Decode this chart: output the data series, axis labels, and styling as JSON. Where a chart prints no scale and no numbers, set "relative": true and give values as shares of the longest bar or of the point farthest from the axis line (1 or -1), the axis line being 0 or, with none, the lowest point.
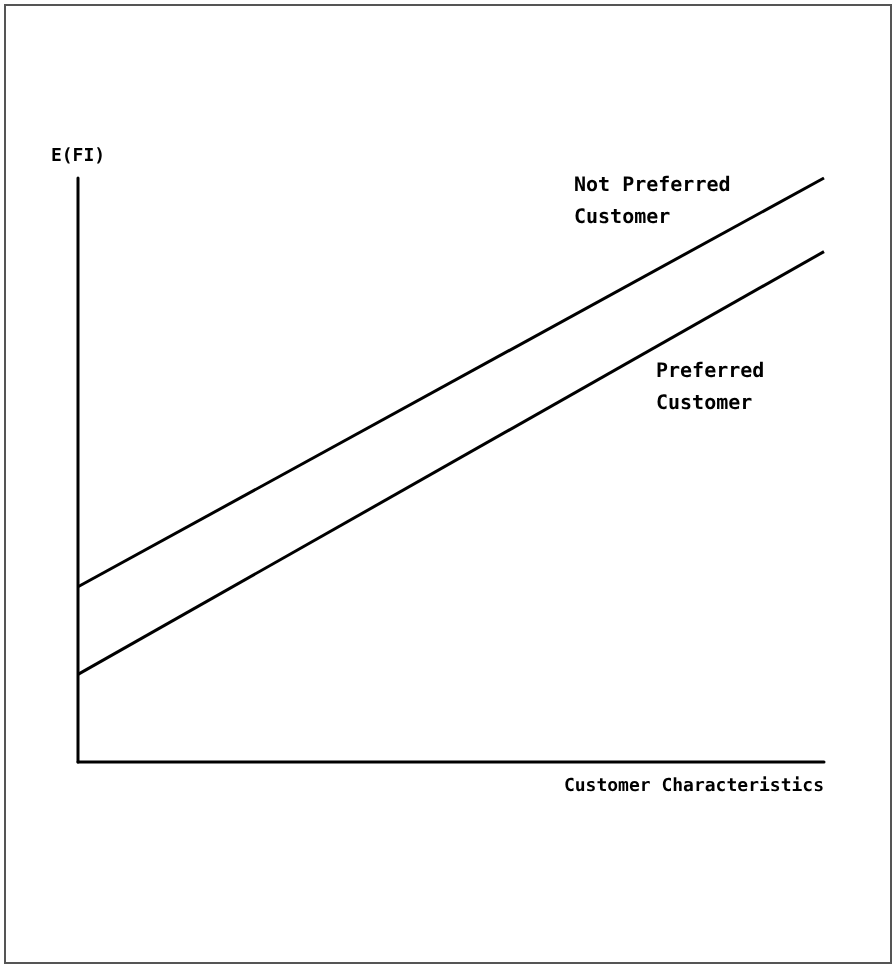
{
  "chart_data": {
    "type": "line",
    "relative": true,
    "xlabel": "Customer Characteristics",
    "ylabel": "E(FI)",
    "categories": [
      null,
      null
    ],
    "marker": "none",
    "grid": false,
    "legend": false,
    "series": [
      {
        "name": "Not Preferred Customer",
        "color": "#000000",
        "values": [
          0.3,
          1
        ]
      },
      {
        "name": "Preferred Customer",
        "color": "#000000",
        "values": [
          0.15,
          0.874
        ]
      }
    ]
  }
}
